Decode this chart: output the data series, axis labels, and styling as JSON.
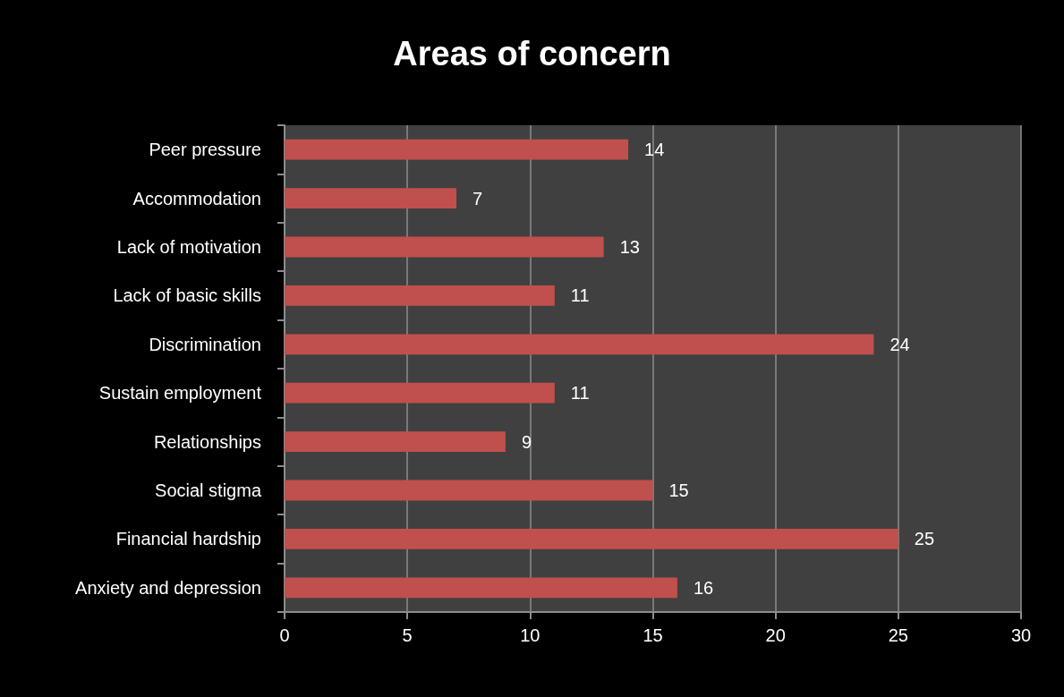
{
  "chart_data": {
    "type": "bar",
    "orientation": "horizontal",
    "title": "Areas of concern",
    "categories": [
      "Peer pressure",
      "Accommodation",
      "Lack of motivation",
      "Lack of basic skills",
      "Discrimination",
      "Sustain employment",
      "Relationships",
      "Social stigma",
      "Financial hardship",
      "Anxiety and depression"
    ],
    "values": [
      14,
      7,
      13,
      11,
      24,
      11,
      9,
      15,
      25,
      16
    ],
    "color": "#c0504d",
    "xlim": [
      0,
      30
    ],
    "xticks": [
      0,
      5,
      10,
      15,
      20,
      25,
      30
    ],
    "grid": "x",
    "data_labels": true
  }
}
